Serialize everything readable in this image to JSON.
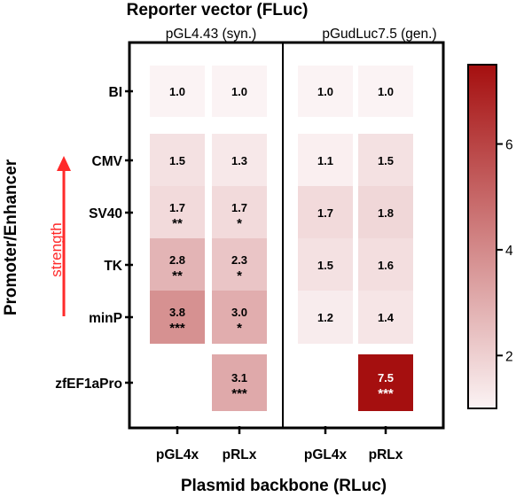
{
  "chart_data": {
    "type": "heatmap",
    "title": "Reporter vector (FLuc)",
    "panel_labels": [
      "pGL4.43 (syn.)",
      "pGudLuc7.5 (gen.)"
    ],
    "xlabel": "Plasmid backbone (RLuc)",
    "ylabel": "Promoter/Enhancer",
    "strength_label": "strength",
    "rows": [
      "BI",
      "CMV",
      "SV40",
      "TK",
      "minP",
      "zfEF1aPro"
    ],
    "columns": [
      "pGL4x",
      "pRLx",
      "pGL4x",
      "pRLx"
    ],
    "cells": [
      {
        "row": 0,
        "col": 0,
        "value": 1.0,
        "label": "1.0",
        "sig": ""
      },
      {
        "row": 0,
        "col": 1,
        "value": 1.0,
        "label": "1.0",
        "sig": ""
      },
      {
        "row": 0,
        "col": 2,
        "value": 1.0,
        "label": "1.0",
        "sig": ""
      },
      {
        "row": 0,
        "col": 3,
        "value": 1.0,
        "label": "1.0",
        "sig": ""
      },
      {
        "row": 1,
        "col": 0,
        "value": 1.5,
        "label": "1.5",
        "sig": ""
      },
      {
        "row": 1,
        "col": 1,
        "value": 1.3,
        "label": "1.3",
        "sig": ""
      },
      {
        "row": 1,
        "col": 2,
        "value": 1.1,
        "label": "1.1",
        "sig": ""
      },
      {
        "row": 1,
        "col": 3,
        "value": 1.5,
        "label": "1.5",
        "sig": ""
      },
      {
        "row": 2,
        "col": 0,
        "value": 1.7,
        "label": "1.7",
        "sig": "**"
      },
      {
        "row": 2,
        "col": 1,
        "value": 1.7,
        "label": "1.7",
        "sig": "*"
      },
      {
        "row": 2,
        "col": 2,
        "value": 1.7,
        "label": "1.7",
        "sig": ""
      },
      {
        "row": 2,
        "col": 3,
        "value": 1.8,
        "label": "1.8",
        "sig": ""
      },
      {
        "row": 3,
        "col": 0,
        "value": 2.8,
        "label": "2.8",
        "sig": "**"
      },
      {
        "row": 3,
        "col": 1,
        "value": 2.3,
        "label": "2.3",
        "sig": "*"
      },
      {
        "row": 3,
        "col": 2,
        "value": 1.5,
        "label": "1.5",
        "sig": ""
      },
      {
        "row": 3,
        "col": 3,
        "value": 1.6,
        "label": "1.6",
        "sig": ""
      },
      {
        "row": 4,
        "col": 0,
        "value": 3.8,
        "label": "3.8",
        "sig": "***"
      },
      {
        "row": 4,
        "col": 1,
        "value": 3.0,
        "label": "3.0",
        "sig": "*"
      },
      {
        "row": 4,
        "col": 2,
        "value": 1.2,
        "label": "1.2",
        "sig": ""
      },
      {
        "row": 4,
        "col": 3,
        "value": 1.4,
        "label": "1.4",
        "sig": ""
      },
      {
        "row": 5,
        "col": 1,
        "value": 3.1,
        "label": "3.1",
        "sig": "***"
      },
      {
        "row": 5,
        "col": 3,
        "value": 7.5,
        "label": "7.5",
        "sig": "***"
      }
    ],
    "colorbar": {
      "ticks": [
        2,
        4,
        6
      ],
      "range": [
        1,
        7.5
      ],
      "low_color": "#fbf3f4",
      "high_color": "#a50f0f"
    },
    "arrow_color": "#ff2a2a"
  }
}
